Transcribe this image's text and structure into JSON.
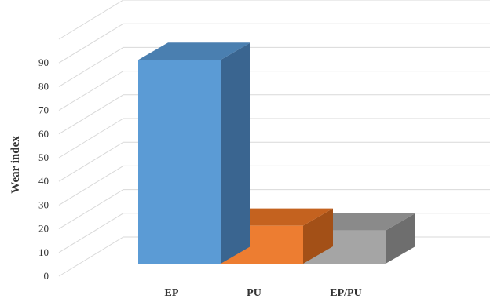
{
  "chart_data": {
    "type": "bar",
    "title": "",
    "xlabel": "",
    "ylabel": "Wear index",
    "categories": [
      "EP",
      "PU",
      "EP/PU"
    ],
    "values": [
      86,
      16,
      14
    ],
    "ylim": [
      0,
      90
    ],
    "yticks": [
      0,
      10,
      20,
      30,
      40,
      50,
      60,
      70,
      80,
      90
    ],
    "grid": true,
    "three_d": true,
    "colors": {
      "EP": {
        "front": "#5B9BD5",
        "top": "#4A7FB0",
        "side": "#3A6590"
      },
      "PU": {
        "front": "#ED7D31",
        "top": "#C4621F",
        "side": "#A35017"
      },
      "EP/PU": {
        "front": "#A5A5A5",
        "top": "#8A8A8A",
        "side": "#6E6E6E"
      }
    }
  }
}
